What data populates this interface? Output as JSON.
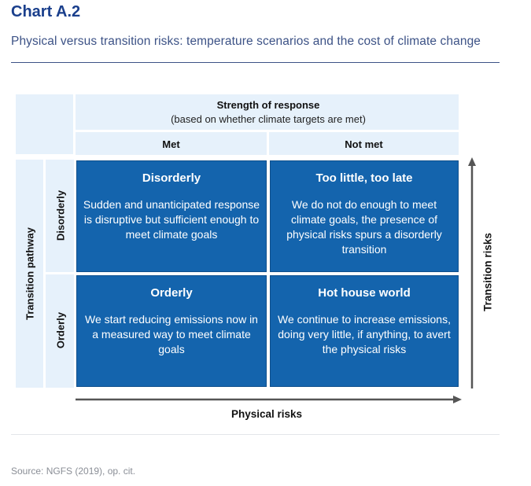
{
  "header": {
    "chart_label": "Chart A.2",
    "subtitle": "Physical versus transition risks: temperature scenarios and the cost of climate change"
  },
  "matrix": {
    "column_axis": {
      "title": "Strength of response",
      "subtitle": "(based on whether climate targets are met)",
      "columns": [
        "Met",
        "Not met"
      ]
    },
    "row_axis": {
      "title": "Transition pathway",
      "rows": [
        "Disorderly",
        "Orderly"
      ]
    },
    "cells": [
      {
        "title": "Disorderly",
        "body": "Sudden and unanticipated response is disruptive but sufficient enough to meet climate goals"
      },
      {
        "title": "Too little, too late",
        "body": "We do not do enough to meet climate goals, the presence of physical risks spurs a disorderly transition"
      },
      {
        "title": "Orderly",
        "body": "We start reducing emissions now in a measured way to meet climate goals"
      },
      {
        "title": "Hot house world",
        "body": "We continue to increase emissions, doing very little, if anything, to avert the physical risks"
      }
    ],
    "x_axis_label": "Physical risks",
    "y_axis_label": "Transition risks"
  },
  "source": "Source: NGFS (2019), op. cit."
}
